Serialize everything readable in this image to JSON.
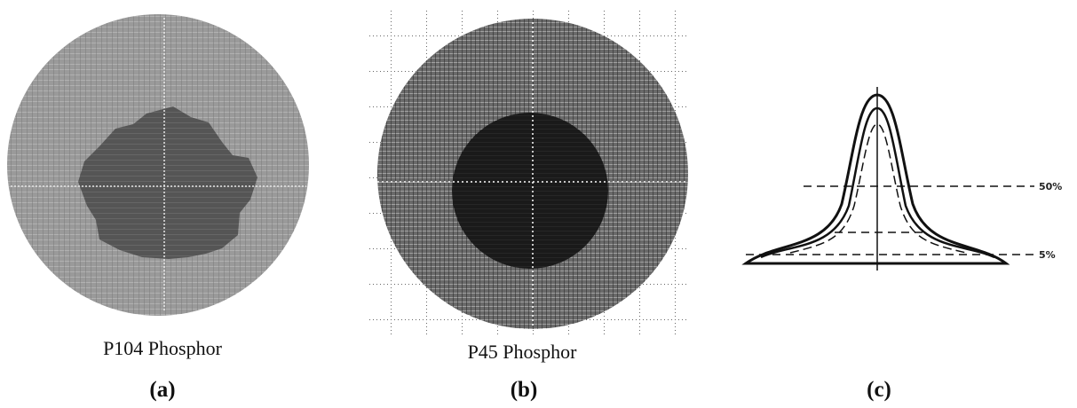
{
  "panels": [
    {
      "caption": "P104 Phosphor",
      "label": "(a)"
    },
    {
      "caption": "P45 Phosphor",
      "label": "(b)"
    },
    {
      "label": "(c)",
      "levels": [
        "50%",
        "5%"
      ]
    }
  ]
}
